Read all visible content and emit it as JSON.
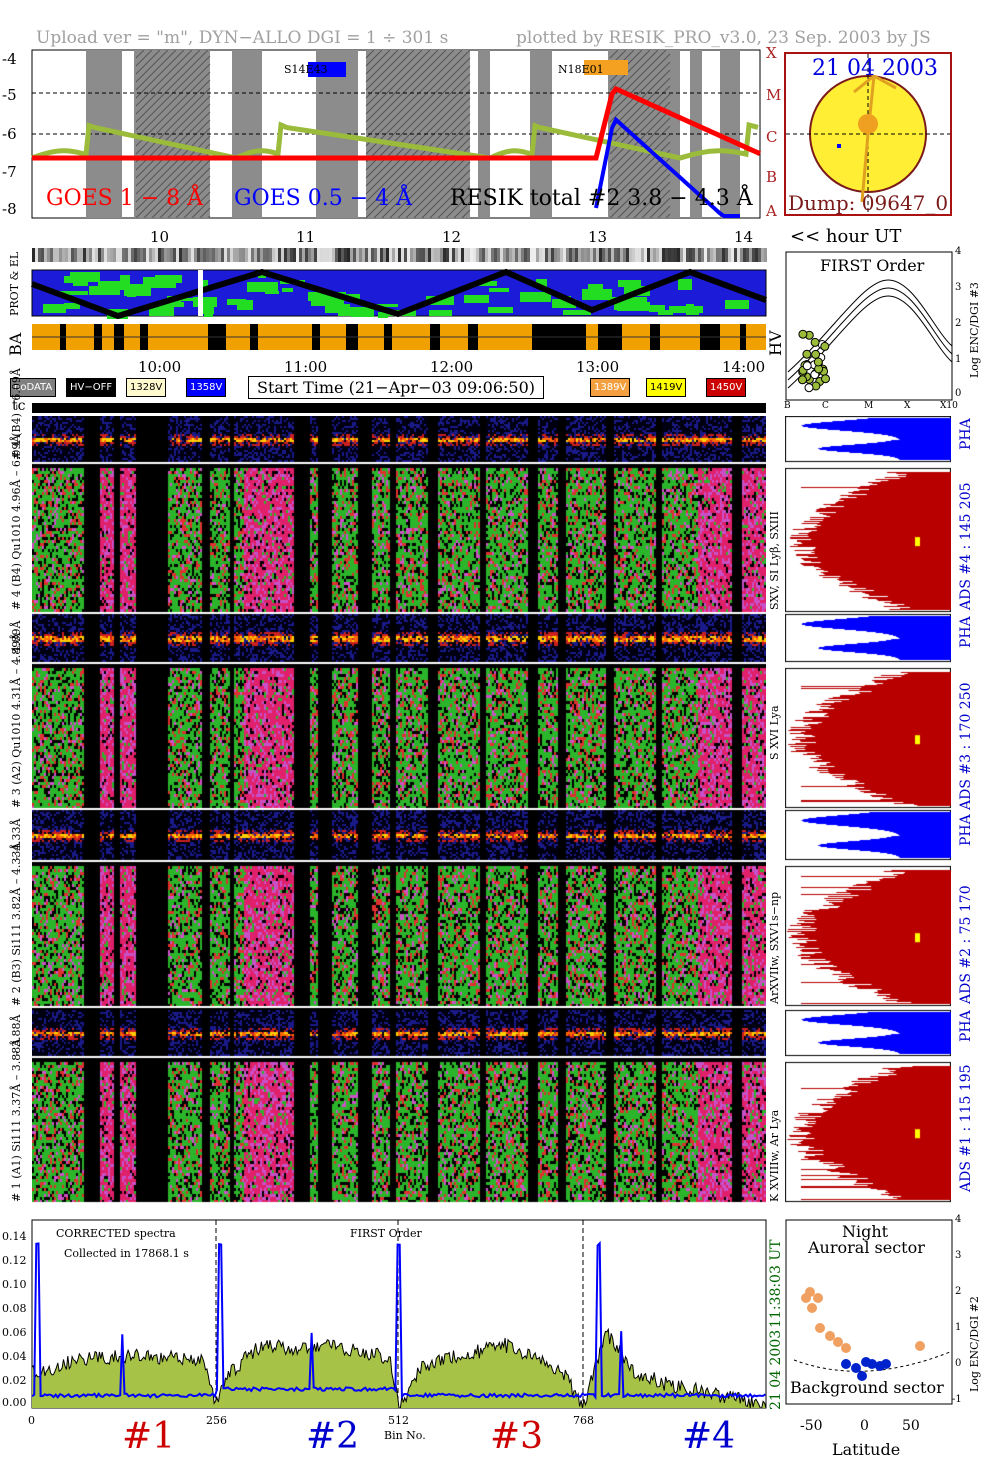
{
  "header": {
    "left": "Upload ver = \"m\", DYN−ALLO DGI =   1 ÷ 301 s",
    "right": "plotted by RESIK_PRO_v3.0, 23 Sep. 2003 by JS"
  },
  "goes_panel": {
    "ylim": [
      -8,
      -4
    ],
    "y_ticks": [
      "-4",
      "-5",
      "-6",
      "-7",
      "-8"
    ],
    "class_labels": [
      "X",
      "M",
      "C",
      "B",
      "A"
    ],
    "hours": [
      "10",
      "11",
      "12",
      "13",
      "14"
    ],
    "legend_goes_long": "GOES 1 − 8 Å",
    "legend_goes_short": "GOES 0.5 − 4 Å",
    "legend_resik": "RESIK total #2  3.8 − 4.3 Å",
    "region_1": "S14E43",
    "region_2": "N18E01",
    "hour_axis_label": "<< hour UT",
    "colors": {
      "goes_long": "#ff0000",
      "goes_short": "#0000ff",
      "resik": "#9bbb3a",
      "orange": "#f4a460"
    }
  },
  "sun": {
    "date": "21 04 2003",
    "dump": "Dump: 09647_0"
  },
  "orbit_panel": {
    "labels": [
      "PROT & EL",
      "BA",
      "HV"
    ],
    "times": [
      "10:00",
      "11:00",
      "12:00",
      "13:00",
      "14:00"
    ]
  },
  "legend": {
    "items": [
      {
        "label": "noDATA",
        "bg": "#7f7f7f",
        "fg": "#ffffff"
      },
      {
        "label": "HV−OFF",
        "bg": "#000000",
        "fg": "#ffffff"
      },
      {
        "label": "1328V",
        "bg": "#fffacd",
        "fg": "#000000"
      },
      {
        "label": "1358V",
        "bg": "#0000ff",
        "fg": "#ffffff"
      },
      {
        "label": "1389V",
        "bg": "#f4a040",
        "fg": "#ffffff"
      },
      {
        "label": "1419V",
        "bg": "#ffff00",
        "fg": "#000000"
      },
      {
        "label": "1450V",
        "bg": "#cc0000",
        "fg": "#ffffff"
      }
    ],
    "start_time": "Start Time (21−Apr−03 09:06:50)"
  },
  "tc_label": "tc",
  "spectrograms": [
    {
      "pha_label": "# 4 (B4)  – 6.09Å",
      "spec_label": "# 4 (B4) Qu1010 4.96Å – 6.09Å",
      "line_label": "SXV, SI Lyβ, SXIII",
      "ads_label": "ADS #4 :   145 205"
    },
    {
      "pha_label": "– 4.89Å",
      "spec_label": "# 3 (A2) Qu1010 4.31Å – 4.89Å",
      "line_label": "S XVI Lya",
      "ads_label": "ADS #3 :   170 250"
    },
    {
      "pha_label": "– 4.33Å",
      "spec_label": "# 2 (B3) Si111 3.82Å – 4.33Å",
      "line_label": "ArXVIIw, SXV1s−np",
      "ads_label": "ADS #2 :   75 170"
    },
    {
      "pha_label": "– 3.88Å",
      "spec_label": "# 1 (A1) Si111 3.37Å – 3.88Å",
      "line_label": "K XVIIIw, Ar Lya",
      "ads_label": "ADS #1 :   115 195"
    }
  ],
  "pha_text": "PHA",
  "first_order_panel": {
    "title": "FIRST Order",
    "ylabel": "Log ENC/DGI #3",
    "x_ticks": [
      "B",
      "C",
      "M",
      "X",
      "X10"
    ],
    "y_ticks": [
      "4",
      "3",
      "2",
      "1",
      "0"
    ]
  },
  "latitude_panel": {
    "title_1": "Night",
    "title_2": "Auroral sector",
    "bottom_label": "Background sector",
    "xlabel": "Latitude",
    "ylabel": "Log ENC/DGI #2",
    "x_ticks": [
      "-50",
      "0",
      "50"
    ],
    "y_ticks": [
      "4",
      "3",
      "2",
      "1",
      "0",
      "-1"
    ]
  },
  "corrected_panel": {
    "label_1": "CORRECTED spectra",
    "label_2": "Collected in 17868.1 s",
    "label_3": "FIRST Order",
    "y_ticks": [
      "0.14",
      "0.12",
      "0.10",
      "0.08",
      "0.06",
      "0.04",
      "0.02",
      "0.00"
    ],
    "x_ticks": [
      "0",
      "256",
      "512",
      "768"
    ],
    "xlabel": "Bin No.",
    "channel_labels": [
      "#1",
      "#2",
      "#3",
      "#4"
    ],
    "date_right": "21 04 2003",
    "time_right": "11:38:03 UT"
  },
  "chart_data": {
    "type": "line",
    "title": "",
    "xlabel": "Bin No.",
    "ylabel": "",
    "xlim": [
      0,
      1024
    ],
    "ylim": [
      0,
      0.15
    ],
    "series": [
      {
        "name": "CORRECTED spectra",
        "x": [
          0,
          20,
          60,
          100,
          140,
          180,
          240,
          256,
          280,
          320,
          360,
          400,
          460,
          500,
          512,
          540,
          580,
          620,
          660,
          700,
          740,
          768,
          800,
          840,
          880,
          920,
          960,
          1000,
          1024
        ],
        "values": [
          0.03,
          0.03,
          0.038,
          0.04,
          0.041,
          0.04,
          0.038,
          0.005,
          0.03,
          0.05,
          0.048,
          0.05,
          0.045,
          0.04,
          0.0,
          0.03,
          0.04,
          0.045,
          0.05,
          0.042,
          0.03,
          0.0,
          0.06,
          0.03,
          0.02,
          0.015,
          0.01,
          0.005,
          0.0
        ]
      }
    ]
  }
}
